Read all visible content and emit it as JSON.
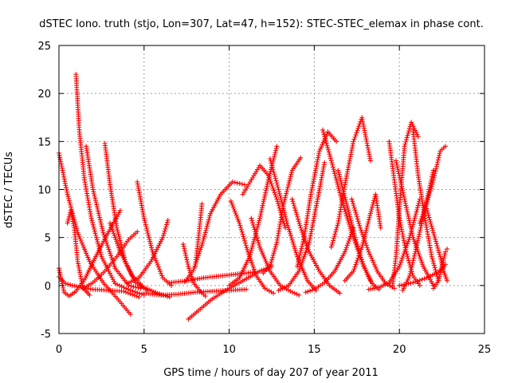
{
  "chart_data": {
    "type": "scatter",
    "title": "dSTEC Iono. truth (stjo, Lon=307, Lat=47, h=152): STEC-STEC_elemax in phase cont.",
    "xlabel": "GPS time / hours of day 207 of year 2011",
    "ylabel": "dSTEC  / TECUs",
    "xlim": [
      0,
      25
    ],
    "ylim": [
      -5,
      25
    ],
    "xticks": [
      0,
      5,
      10,
      15,
      20,
      25
    ],
    "yticks": [
      -5,
      0,
      5,
      10,
      15,
      20,
      25
    ],
    "xtick_labels": [
      "0",
      "5",
      "10",
      "15",
      "20",
      "25"
    ],
    "ytick_labels": [
      "-5",
      "0",
      "5",
      "10",
      "15",
      "20",
      "25"
    ],
    "grid": true,
    "legend": "none",
    "marker": "+",
    "color": "#ff0000",
    "arcs": [
      {
        "x": [
          0.0,
          0.5,
          1.1,
          1.8,
          2.6,
          3.5,
          4.2
        ],
        "y": [
          13.8,
          9.5,
          5.5,
          2.5,
          0.3,
          -1.5,
          -3.0
        ]
      },
      {
        "x": [
          0.0,
          0.3,
          0.6,
          1.0,
          1.5,
          2.1,
          2.8,
          3.6
        ],
        "y": [
          1.8,
          -0.7,
          -1.1,
          -0.6,
          0.6,
          2.8,
          5.2,
          7.8
        ]
      },
      {
        "x": [
          0.0,
          0.4,
          0.8,
          1.3,
          2.0,
          2.9,
          3.8,
          4.7
        ],
        "y": [
          0.9,
          0.2,
          0.0,
          -0.2,
          -0.4,
          -0.5,
          -0.6,
          -1.2
        ]
      },
      {
        "x": [
          0.5,
          0.7,
          0.9,
          1.1,
          1.4,
          1.8
        ],
        "y": [
          6.5,
          7.8,
          6.0,
          2.5,
          -0.2,
          -1.0
        ]
      },
      {
        "x": [
          1.0,
          1.2,
          1.5,
          1.9,
          2.5,
          3.3,
          4.2,
          5.0
        ],
        "y": [
          22.0,
          16.0,
          11.0,
          7.0,
          3.0,
          0.2,
          -0.5,
          -1.0
        ]
      },
      {
        "x": [
          1.6,
          2.0,
          2.6,
          3.3,
          4.1,
          4.8
        ],
        "y": [
          14.5,
          10.0,
          5.5,
          1.8,
          0.0,
          -0.3
        ]
      },
      {
        "x": [
          2.7,
          3.0,
          3.4,
          3.9,
          4.5,
          5.2
        ],
        "y": [
          14.8,
          10.5,
          6.0,
          2.5,
          0.3,
          -0.5
        ]
      },
      {
        "x": [
          1.4,
          2.0,
          2.7,
          3.4,
          4.1,
          4.6
        ],
        "y": [
          -0.3,
          0.3,
          1.5,
          3.0,
          4.8,
          5.6
        ]
      },
      {
        "x": [
          3.0,
          3.6,
          4.3,
          5.0,
          5.8,
          6.5
        ],
        "y": [
          6.5,
          3.5,
          1.0,
          -0.2,
          -0.8,
          -1.2
        ]
      },
      {
        "x": [
          4.6,
          5.0,
          5.5,
          6.1,
          6.6
        ],
        "y": [
          10.8,
          7.0,
          3.5,
          0.8,
          0.0
        ]
      },
      {
        "x": [
          4.0,
          4.7,
          5.4,
          6.1,
          6.4
        ],
        "y": [
          0.2,
          0.8,
          2.5,
          5.0,
          6.8
        ]
      },
      {
        "x": [
          5.0,
          6.0,
          7.0,
          8.0,
          9.0,
          10.0,
          11.0
        ],
        "y": [
          -0.8,
          -1.0,
          -0.9,
          -0.7,
          -0.6,
          -0.5,
          -0.4
        ]
      },
      {
        "x": [
          7.3,
          7.6,
          7.9,
          8.3,
          8.6
        ],
        "y": [
          4.3,
          2.0,
          0.3,
          -0.6,
          -1.1
        ]
      },
      {
        "x": [
          7.6,
          8.2,
          9.0,
          9.9,
          10.8,
          11.8,
          12.5
        ],
        "y": [
          -3.5,
          -2.6,
          -1.4,
          -0.4,
          0.5,
          1.5,
          2.0
        ]
      },
      {
        "x": [
          7.4,
          7.9,
          8.4,
          8.9,
          9.5,
          10.2,
          10.9
        ],
        "y": [
          0.4,
          1.6,
          4.2,
          7.5,
          9.5,
          10.8,
          10.5
        ]
      },
      {
        "x": [
          8.0,
          8.2,
          8.4
        ],
        "y": [
          2.0,
          5.0,
          8.5
        ]
      },
      {
        "x": [
          6.5,
          7.5,
          8.5,
          9.5,
          10.5,
          11.5
        ],
        "y": [
          0.3,
          0.5,
          0.8,
          1.0,
          1.2,
          1.4
        ]
      },
      {
        "x": [
          10.1,
          10.6,
          11.1,
          11.6,
          12.1,
          12.6
        ],
        "y": [
          8.8,
          6.5,
          3.5,
          1.0,
          -0.3,
          -0.8
        ]
      },
      {
        "x": [
          10.0,
          10.6,
          11.2,
          11.8,
          12.3,
          12.8
        ],
        "y": [
          0.0,
          0.8,
          3.0,
          7.0,
          11.0,
          14.5
        ]
      },
      {
        "x": [
          10.8,
          11.3,
          11.8,
          12.3,
          12.8,
          13.3
        ],
        "y": [
          9.5,
          11.0,
          12.5,
          11.5,
          9.0,
          6.0
        ]
      },
      {
        "x": [
          11.3,
          11.8,
          12.4,
          13.0,
          13.6,
          14.1
        ],
        "y": [
          7.0,
          4.0,
          1.5,
          0.0,
          -0.6,
          -1.0
        ]
      },
      {
        "x": [
          12.0,
          12.4,
          12.8,
          13.2,
          13.7,
          14.2
        ],
        "y": [
          1.3,
          2.0,
          4.5,
          8.5,
          12.0,
          13.3
        ]
      },
      {
        "x": [
          12.4,
          12.9,
          13.4,
          14.0,
          14.6,
          15.1
        ],
        "y": [
          13.2,
          10.0,
          6.5,
          3.0,
          0.5,
          -0.5
        ]
      },
      {
        "x": [
          12.9,
          13.5,
          14.1,
          14.7,
          15.2,
          15.6
        ],
        "y": [
          -0.5,
          0.0,
          1.5,
          4.5,
          9.0,
          12.8
        ]
      },
      {
        "x": [
          13.7,
          14.2,
          14.7,
          15.3,
          15.9,
          16.5
        ],
        "y": [
          9.0,
          6.0,
          3.5,
          1.5,
          0.0,
          -0.8
        ]
      },
      {
        "x": [
          14.0,
          14.4,
          14.8,
          15.3,
          15.8,
          16.3
        ],
        "y": [
          2.0,
          5.0,
          9.5,
          14.0,
          16.0,
          15.0
        ]
      },
      {
        "x": [
          14.5,
          15.0,
          15.6,
          16.2,
          16.8,
          17.3
        ],
        "y": [
          -0.7,
          -0.4,
          0.3,
          1.5,
          3.5,
          6.0
        ]
      },
      {
        "x": [
          15.5,
          16.0,
          16.6,
          17.2,
          17.8,
          18.3
        ],
        "y": [
          16.2,
          13.0,
          9.0,
          5.5,
          2.5,
          0.5
        ]
      },
      {
        "x": [
          16.0,
          16.4,
          16.8,
          17.3,
          17.8,
          18.3
        ],
        "y": [
          4.0,
          6.5,
          10.5,
          15.0,
          17.5,
          13.0
        ]
      },
      {
        "x": [
          16.4,
          16.9,
          17.4,
          17.9,
          18.4,
          18.8
        ],
        "y": [
          12.0,
          8.5,
          5.0,
          2.0,
          0.2,
          -0.4
        ]
      },
      {
        "x": [
          16.8,
          17.3,
          17.8,
          18.3,
          18.6,
          18.9
        ],
        "y": [
          0.5,
          1.5,
          4.0,
          7.5,
          9.5,
          6.0
        ]
      },
      {
        "x": [
          17.2,
          17.7,
          18.2,
          18.7,
          19.2,
          19.7
        ],
        "y": [
          9.0,
          6.0,
          3.5,
          1.5,
          0.2,
          -0.3
        ]
      },
      {
        "x": [
          18.2,
          18.8,
          19.4,
          20.0,
          20.6,
          21.2
        ],
        "y": [
          -0.4,
          -0.2,
          0.3,
          2.0,
          5.0,
          9.0
        ]
      },
      {
        "x": [
          19.4,
          19.7,
          20.0,
          20.4,
          20.8,
          21.2
        ],
        "y": [
          15.0,
          11.0,
          7.0,
          3.5,
          1.0,
          0.0
        ]
      },
      {
        "x": [
          19.6,
          19.8,
          20.0,
          20.3,
          20.7,
          21.1
        ],
        "y": [
          0.0,
          3.0,
          8.0,
          14.5,
          17.0,
          15.5
        ]
      },
      {
        "x": [
          19.8,
          20.3,
          20.8,
          21.4,
          22.0
        ],
        "y": [
          13.0,
          9.0,
          5.0,
          2.0,
          0.0
        ]
      },
      {
        "x": [
          20.2,
          20.6,
          21.0,
          21.5,
          22.0
        ],
        "y": [
          -0.5,
          1.0,
          4.0,
          8.0,
          12.0
        ]
      },
      {
        "x": [
          20.8,
          21.1,
          21.5,
          21.9,
          22.3
        ],
        "y": [
          16.2,
          11.5,
          7.0,
          3.0,
          0.5
        ]
      },
      {
        "x": [
          21.2,
          21.6,
          22.0,
          22.4,
          22.7
        ],
        "y": [
          6.5,
          8.5,
          11.0,
          14.0,
          14.5
        ]
      },
      {
        "x": [
          21.6,
          22.0,
          22.4,
          22.6,
          22.8
        ],
        "y": [
          8.0,
          5.5,
          3.0,
          1.5,
          0.5
        ]
      },
      {
        "x": [
          22.0,
          22.3,
          22.5,
          22.7,
          22.8
        ],
        "y": [
          -0.3,
          0.5,
          2.0,
          3.5,
          3.8
        ]
      },
      {
        "x": [
          20.0,
          20.8,
          21.6,
          22.4,
          22.7
        ],
        "y": [
          0.0,
          0.3,
          0.8,
          1.5,
          2.2
        ]
      }
    ]
  }
}
